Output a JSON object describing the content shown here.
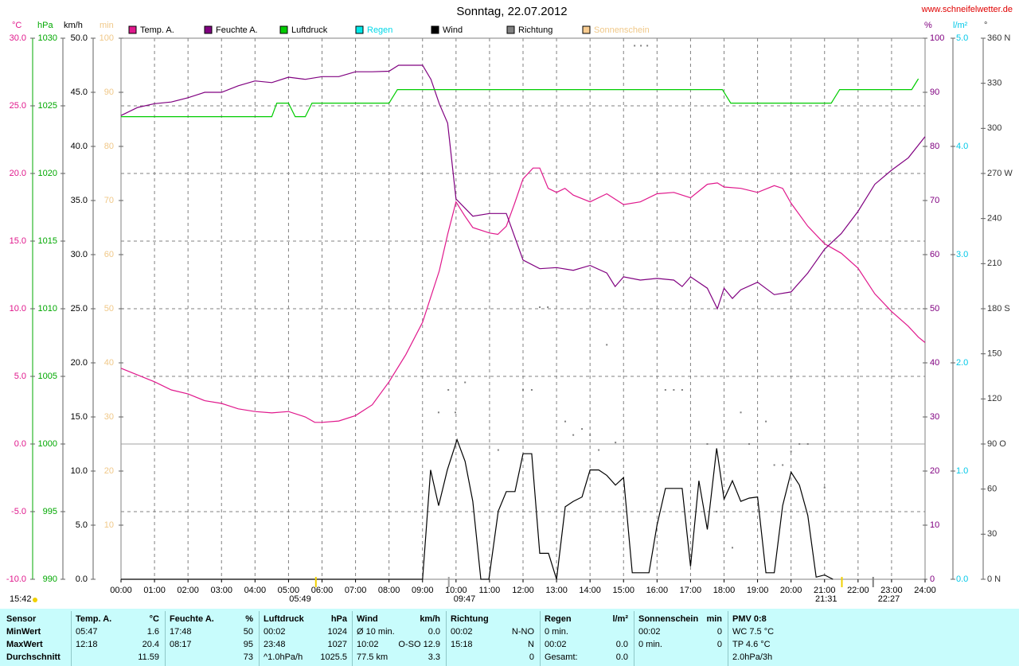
{
  "site": "www.schneifelwetter.de",
  "chart_data": {
    "type": "line",
    "title": "Sonntag, 22.07.2012",
    "day_length": "15:42",
    "xlim": [
      0,
      24
    ],
    "xticks": [
      {
        "value": 0,
        "label": "00:00"
      },
      {
        "value": 1,
        "label": "01:00"
      },
      {
        "value": 2,
        "label": "02:00"
      },
      {
        "value": 3,
        "label": "03:00"
      },
      {
        "value": 4,
        "label": "04:00"
      },
      {
        "value": 5,
        "label": "05:00"
      },
      {
        "value": 6,
        "label": "06:00"
      },
      {
        "value": 7,
        "label": "07:00"
      },
      {
        "value": 8,
        "label": "08:00"
      },
      {
        "value": 9,
        "label": "09:00"
      },
      {
        "value": 10,
        "label": "10:00"
      },
      {
        "value": 11,
        "label": "11:00"
      },
      {
        "value": 12,
        "label": "12:00"
      },
      {
        "value": 13,
        "label": "13:00"
      },
      {
        "value": 14,
        "label": "14:00"
      },
      {
        "value": 15,
        "label": "15:00"
      },
      {
        "value": 16,
        "label": "16:00"
      },
      {
        "value": 17,
        "label": "17:00"
      },
      {
        "value": 18,
        "label": "18:00"
      },
      {
        "value": 19,
        "label": "19:00"
      },
      {
        "value": 20,
        "label": "20:00"
      },
      {
        "value": 21,
        "label": "21:00"
      },
      {
        "value": 22,
        "label": "22:00"
      },
      {
        "value": 23,
        "label": "23:00"
      },
      {
        "value": 24,
        "label": "24:00"
      }
    ],
    "grid": true,
    "grid_axis": "temp",
    "axes": [
      {
        "id": "temp",
        "side": "left",
        "unit": "°C",
        "color": "#e0188c",
        "ylim": [
          -10,
          30
        ],
        "yticks": [
          {
            "value": 30,
            "label": "30.0"
          },
          {
            "value": 25,
            "label": "25.0"
          },
          {
            "value": 20,
            "label": "20.0"
          },
          {
            "value": 15,
            "label": "15.0"
          },
          {
            "value": 10,
            "label": "10.0"
          },
          {
            "value": 5,
            "label": "5.0"
          },
          {
            "value": 0,
            "label": "0.0"
          },
          {
            "value": -5,
            "label": "-5.0"
          },
          {
            "value": -10,
            "label": "-10.0"
          }
        ]
      },
      {
        "id": "press",
        "side": "left",
        "unit": "hPa",
        "color": "#00a800",
        "ylim": [
          990,
          1030
        ],
        "yticks": [
          1030,
          1025,
          1020,
          1015,
          1010,
          1005,
          1000,
          995,
          990
        ]
      },
      {
        "id": "wind",
        "side": "left",
        "unit": "km/h",
        "color": "#000000",
        "ylim": [
          0,
          50
        ],
        "yticks": [
          {
            "value": 50,
            "label": "50.0"
          },
          {
            "value": 45,
            "label": "45.0"
          },
          {
            "value": 40,
            "label": "40.0"
          },
          {
            "value": 35,
            "label": "35.0"
          },
          {
            "value": 30,
            "label": "30.0"
          },
          {
            "value": 25,
            "label": "25.0"
          },
          {
            "value": 20,
            "label": "20.0"
          },
          {
            "value": 15,
            "label": "15.0"
          },
          {
            "value": 10,
            "label": "10.0"
          },
          {
            "value": 5,
            "label": "5.0"
          },
          {
            "value": 0,
            "label": "0.0"
          }
        ]
      },
      {
        "id": "sun",
        "side": "left",
        "unit": "min",
        "color": "#f0c888",
        "ylim": [
          0,
          100
        ],
        "yticks": [
          100,
          90,
          80,
          70,
          60,
          50,
          40,
          30,
          20,
          10
        ]
      },
      {
        "id": "hum",
        "side": "right",
        "unit": "%",
        "color": "#800080",
        "ylim": [
          0,
          100
        ],
        "yticks": [
          100,
          90,
          80,
          70,
          60,
          50,
          40,
          30,
          20,
          10,
          0
        ]
      },
      {
        "id": "rain",
        "side": "right",
        "unit": "l/m²",
        "color": "#00c8e8",
        "ylim": [
          0,
          5
        ],
        "yticks": [
          {
            "value": 5,
            "label": "5.0"
          },
          {
            "value": 4,
            "label": "4.0"
          },
          {
            "value": 3,
            "label": "3.0"
          },
          {
            "value": 2,
            "label": "2.0"
          },
          {
            "value": 1,
            "label": "1.0"
          },
          {
            "value": 0,
            "label": "0.0"
          }
        ]
      },
      {
        "id": "dir",
        "side": "right",
        "unit": "°",
        "color": "#333333",
        "ylim": [
          0,
          360
        ],
        "yticks": [
          {
            "value": 360,
            "label": "360 N"
          },
          330,
          300,
          {
            "value": 270,
            "label": "270 W"
          },
          240,
          210,
          {
            "value": 180,
            "label": "180 S"
          },
          150,
          120,
          {
            "value": 90,
            "label": "90 O"
          },
          60,
          30,
          {
            "value": 0,
            "label": "0 N"
          }
        ]
      }
    ],
    "series": [
      {
        "name": "Temp. A.",
        "color": "#e0188c",
        "axis": "temp",
        "x": [
          0,
          0.5,
          1,
          1.5,
          2,
          2.5,
          3,
          3.5,
          4,
          4.5,
          5,
          5.5,
          5.783,
          6,
          6.5,
          7,
          7.5,
          8,
          8.5,
          9,
          9.5,
          9.75,
          10,
          10.25,
          10.5,
          11,
          11.25,
          11.5,
          11.75,
          12,
          12.3,
          12.5,
          12.75,
          13,
          13.25,
          13.5,
          14,
          14.5,
          15,
          15.5,
          16,
          16.5,
          17,
          17.5,
          17.8,
          18,
          18.5,
          19,
          19.5,
          19.75,
          20,
          20.5,
          21,
          21.5,
          22,
          22.5,
          23,
          23.5,
          23.8,
          24
        ],
        "values": [
          5.6,
          5.1,
          4.6,
          4.0,
          3.7,
          3.2,
          3.0,
          2.6,
          2.4,
          2.3,
          2.4,
          2.0,
          1.6,
          1.6,
          1.7,
          2.1,
          2.9,
          4.6,
          6.6,
          9.0,
          12.8,
          15.5,
          17.9,
          16.9,
          16.0,
          15.6,
          15.5,
          16.1,
          17.8,
          19.6,
          20.4,
          20.4,
          18.9,
          18.6,
          18.9,
          18.4,
          17.9,
          18.5,
          17.7,
          17.9,
          18.5,
          18.6,
          18.2,
          19.2,
          19.3,
          19.0,
          18.9,
          18.6,
          19.1,
          18.9,
          17.8,
          16.1,
          14.8,
          14.1,
          13.0,
          11.1,
          9.8,
          8.7,
          7.9,
          7.5
        ]
      },
      {
        "name": "Feuchte A.",
        "color": "#800080",
        "axis": "hum",
        "x": [
          0,
          0.5,
          1,
          1.5,
          2,
          2.5,
          3,
          3.5,
          4,
          4.5,
          5,
          5.5,
          6,
          6.5,
          7,
          7.5,
          8,
          8.283,
          8.5,
          9,
          9.25,
          9.5,
          9.75,
          10,
          10.5,
          11,
          11.5,
          12,
          12.5,
          13,
          13.5,
          14,
          14.5,
          14.75,
          15,
          15.5,
          16,
          16.5,
          16.75,
          17,
          17.5,
          17.8,
          18,
          18.25,
          18.5,
          19,
          19.5,
          20,
          20.5,
          21,
          21.5,
          22,
          22.5,
          23,
          23.5,
          24
        ],
        "values": [
          85.7,
          87.2,
          87.9,
          88.2,
          89.0,
          90.0,
          90.0,
          91.2,
          92.1,
          91.8,
          92.8,
          92.4,
          92.9,
          92.9,
          93.8,
          93.8,
          93.9,
          95,
          95,
          95,
          92.4,
          87.9,
          84.3,
          70.3,
          67.1,
          67.6,
          67.6,
          59.0,
          57.4,
          57.6,
          57.1,
          58.0,
          56.6,
          54.1,
          55.9,
          55.3,
          55.6,
          55.3,
          54.1,
          55.9,
          53.8,
          50,
          53.8,
          51.9,
          53.5,
          54.9,
          52.6,
          53.1,
          56.6,
          61.0,
          63.9,
          68.0,
          73.0,
          75.6,
          77.9,
          81.8
        ]
      },
      {
        "name": "Luftdruck",
        "color": "#00cc00",
        "axis": "press",
        "x": [
          0,
          4.5,
          4.65,
          5.0,
          5.2,
          5.5,
          5.7,
          8.0,
          8.25,
          17.95,
          18.2,
          21.2,
          21.45,
          23.6,
          23.8
        ],
        "values": [
          1024.2,
          1024.2,
          1025.2,
          1025.2,
          1024.2,
          1024.2,
          1025.2,
          1025.2,
          1026.2,
          1026.2,
          1025.2,
          1025.2,
          1026.2,
          1026.2,
          1027.0
        ]
      },
      {
        "name": "Regen",
        "color": "#00e8e8",
        "text_color": "#00d8e8",
        "axis": "rain",
        "x": [],
        "values": []
      },
      {
        "name": "Wind",
        "color": "#000000",
        "axis": "wind",
        "x": [
          0,
          9.0,
          9.24,
          9.48,
          9.74,
          10.03,
          10.27,
          10.5,
          10.74,
          10.98,
          11.26,
          11.5,
          11.76,
          12.0,
          12.26,
          12.5,
          12.76,
          13.0,
          13.26,
          13.5,
          13.76,
          14.0,
          14.26,
          14.5,
          14.76,
          15.0,
          15.26,
          15.76,
          16.0,
          16.25,
          16.75,
          17.0,
          17.25,
          17.5,
          17.78,
          18.0,
          18.25,
          18.5,
          18.75,
          19.0,
          19.25,
          19.5,
          19.75,
          20.0,
          20.25,
          20.5,
          20.75,
          21.0,
          21.25
        ],
        "values": [
          0,
          0,
          10.1,
          6.8,
          10.1,
          12.9,
          10.9,
          7.2,
          0,
          0,
          6.3,
          8.1,
          8.1,
          11.6,
          11.6,
          2.4,
          2.4,
          0,
          6.7,
          7.2,
          7.6,
          10.1,
          10.1,
          9.6,
          8.7,
          9.4,
          0.6,
          0.6,
          5.0,
          8.4,
          8.4,
          1.2,
          9.1,
          4.6,
          12.1,
          7.4,
          9.1,
          7.2,
          7.5,
          7.6,
          0.6,
          0.6,
          6.8,
          9.9,
          8.7,
          5.9,
          0.2,
          0.4,
          0
        ]
      },
      {
        "name": "Richtung",
        "color": "#808080",
        "axis": "dir",
        "marker": "dot",
        "x": [
          15.33,
          15.52,
          15.71,
          9.48,
          9.77,
          9.98,
          10.27,
          11.26,
          12.0,
          12.26,
          12.5,
          12.74,
          13.26,
          13.5,
          13.76,
          14.0,
          14.26,
          14.5,
          14.76,
          16.25,
          16.5,
          16.75,
          17.5,
          17.78,
          18.25,
          18.5,
          18.75,
          19.25,
          19.5,
          19.75,
          20.0,
          20.25,
          20.5,
          21.0
        ],
        "values": [
          355,
          355,
          355,
          111,
          126,
          111,
          131,
          86,
          126,
          126,
          181,
          181,
          105,
          96,
          100,
          96,
          86,
          156,
          91,
          126,
          126,
          126,
          90,
          45,
          21,
          111,
          90,
          105,
          76,
          76,
          85,
          90,
          90,
          61
        ]
      },
      {
        "name": "Sonnenschein",
        "color": "#f8cc90",
        "text_color": "#f0c888",
        "axis": "sun",
        "x": [],
        "values": []
      }
    ],
    "annotations": [
      {
        "x": 5.8167,
        "label": "05:49",
        "color": "#f0d000"
      },
      {
        "x": 9.7833,
        "label": "09:47",
        "color": "#a0a0a0"
      },
      {
        "x": 21.5167,
        "label": "21:31",
        "color": "#f0d000"
      },
      {
        "x": 22.45,
        "label": "22:27",
        "color": "#808080"
      }
    ]
  },
  "table": {
    "columns": [
      {
        "header": [
          "Sensor",
          null
        ],
        "rows": [
          [
            "MinWert",
            null
          ],
          [
            "MaxWert",
            null
          ],
          [
            "Durchschnitt",
            null
          ]
        ]
      },
      {
        "header": [
          "Temp. A.",
          "°C"
        ],
        "rows": [
          [
            "05:47",
            "1.6"
          ],
          [
            "12:18",
            "20.4"
          ],
          [
            null,
            "11.59"
          ]
        ]
      },
      {
        "header": [
          "Feuchte A.",
          "%"
        ],
        "rows": [
          [
            "17:48",
            "50"
          ],
          [
            "08:17",
            "95"
          ],
          [
            null,
            "73"
          ]
        ]
      },
      {
        "header": [
          "Luftdruck",
          "hPa"
        ],
        "rows": [
          [
            "00:02",
            "1024"
          ],
          [
            "23:48",
            "1027"
          ],
          [
            "^1.0hPa/h",
            "1025.5"
          ]
        ]
      },
      {
        "header": [
          "Wind",
          "km/h"
        ],
        "rows": [
          [
            "Ø 10 min.",
            "0.0"
          ],
          [
            "10:02",
            "O-SO 12.9"
          ],
          [
            "77.5 km",
            "3.3"
          ]
        ]
      },
      {
        "header": [
          "Richtung",
          null
        ],
        "rows": [
          [
            "00:02",
            "N-NO"
          ],
          [
            "15:18",
            "N"
          ],
          [
            null,
            "0"
          ]
        ]
      },
      {
        "header": [
          "Regen",
          "l/m²"
        ],
        "rows": [
          [
            "0 min.",
            null
          ],
          [
            "00:02",
            "0.0"
          ],
          [
            "Gesamt:",
            "0.0"
          ]
        ]
      },
      {
        "header": [
          "Sonnenschein",
          "min"
        ],
        "rows": [
          [
            "00:02",
            "0"
          ],
          [
            "0 min.",
            "0"
          ],
          [
            null,
            null
          ]
        ]
      },
      {
        "header": [
          "PMV 0:8",
          null
        ],
        "rows": [
          [
            "WC 7.5 °C",
            null
          ],
          [
            "TP 4.6 °C",
            null
          ],
          [
            "2.0hPa/3h",
            null
          ]
        ]
      }
    ]
  }
}
